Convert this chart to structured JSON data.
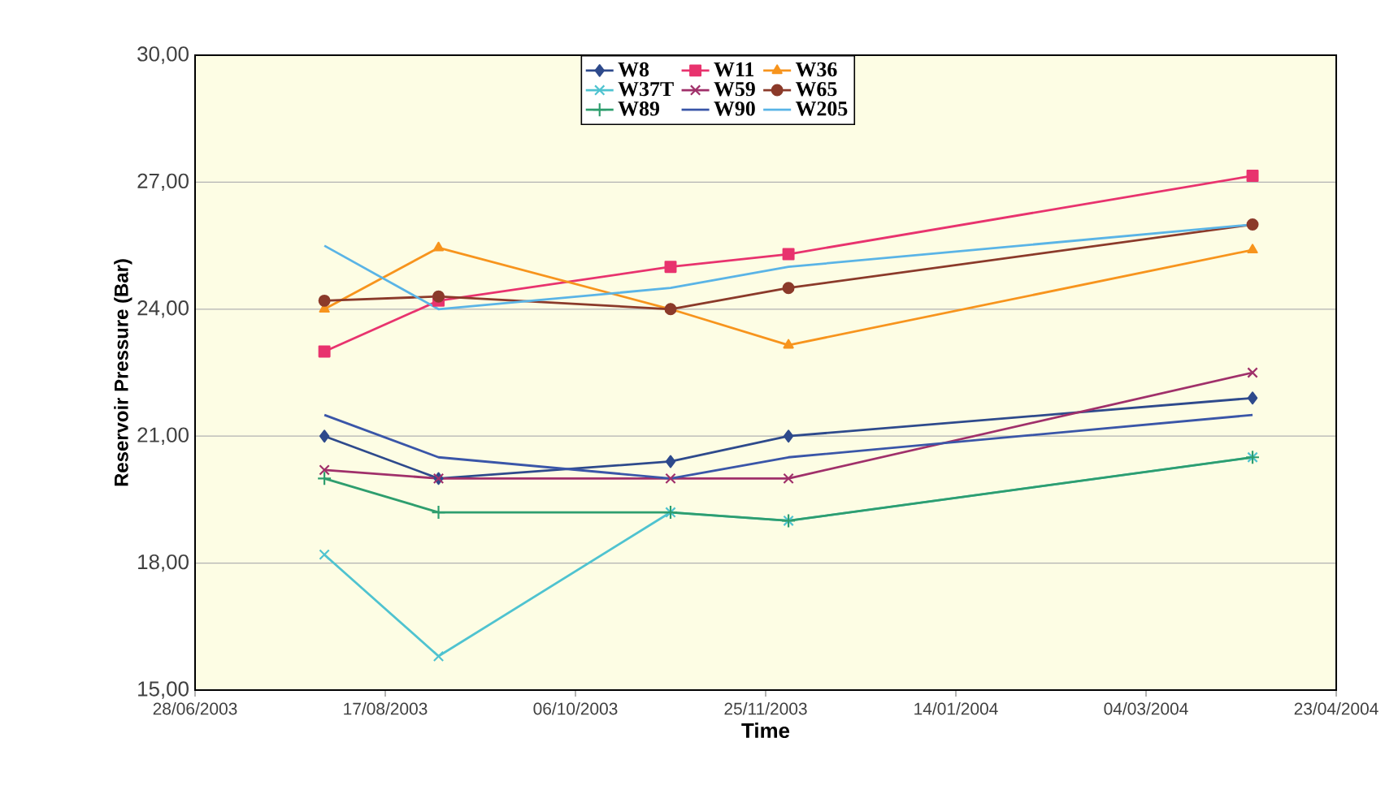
{
  "chart_data": {
    "type": "line",
    "xlabel": "Time",
    "ylabel": "Reservoir Pressure (Bar)",
    "x": [
      "2003-08-01",
      "2003-08-31",
      "2003-10-31",
      "2003-12-01",
      "2004-04-01"
    ],
    "series": [
      {
        "name": "W8",
        "color": "#2e4a8c",
        "marker": "diamond",
        "values": [
          21.0,
          20.0,
          20.4,
          21.0,
          21.9
        ]
      },
      {
        "name": "W11",
        "color": "#e8336e",
        "marker": "square",
        "values": [
          23.0,
          24.2,
          25.0,
          25.3,
          27.15
        ]
      },
      {
        "name": "W36",
        "color": "#f7941d",
        "marker": "triangle",
        "values": [
          24.0,
          25.45,
          24.0,
          23.15,
          25.4
        ]
      },
      {
        "name": "W37T",
        "color": "#4fc3d0",
        "marker": "cross",
        "values": [
          18.2,
          15.8,
          19.2,
          19.0,
          20.5
        ]
      },
      {
        "name": "W59",
        "color": "#a0306a",
        "marker": "cross",
        "values": [
          20.2,
          20.0,
          20.0,
          20.0,
          22.5
        ]
      },
      {
        "name": "W65",
        "color": "#8b3a2a",
        "marker": "circle",
        "values": [
          24.2,
          24.3,
          24.0,
          24.5,
          26.0
        ]
      },
      {
        "name": "W89",
        "color": "#2e9e6e",
        "marker": "plus",
        "values": [
          20.0,
          19.2,
          19.2,
          19.0,
          20.5
        ]
      },
      {
        "name": "W90",
        "color": "#3a56a8",
        "marker": "none",
        "values": [
          21.5,
          20.5,
          20.0,
          20.5,
          21.5
        ]
      },
      {
        "name": "W205",
        "color": "#5ab4e6",
        "marker": "none",
        "values": [
          25.5,
          24.0,
          24.5,
          25.0,
          26.0
        ]
      }
    ],
    "xlim": [
      "2003-06-28",
      "2004-04-23"
    ],
    "xticks": [
      {
        "value": "2003-06-28",
        "label": "28/06/2003"
      },
      {
        "value": "2003-08-17",
        "label": "17/08/2003"
      },
      {
        "value": "2003-10-06",
        "label": "06/10/2003"
      },
      {
        "value": "2003-11-25",
        "label": "25/11/2003"
      },
      {
        "value": "2004-01-14",
        "label": "14/01/2004"
      },
      {
        "value": "2004-03-04",
        "label": "04/03/2004"
      },
      {
        "value": "2004-04-23",
        "label": "23/04/2004"
      }
    ],
    "ylim": [
      15,
      30
    ],
    "yticks": [
      {
        "value": 15,
        "label": "15,00"
      },
      {
        "value": 18,
        "label": "18,00"
      },
      {
        "value": 21,
        "label": "21,00"
      },
      {
        "value": 24,
        "label": "24,00"
      },
      {
        "value": 27,
        "label": "27,00"
      },
      {
        "value": 30,
        "label": "30,00"
      }
    ],
    "grid": "y",
    "legend": "top",
    "line_style": "solid"
  }
}
